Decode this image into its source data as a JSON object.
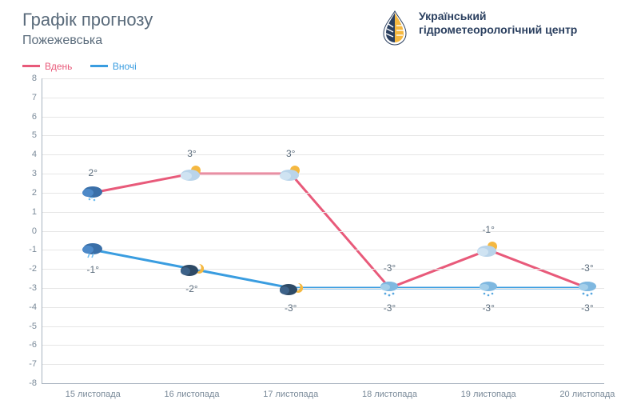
{
  "title": "Графік прогнозу",
  "subtitle": "Пожежевська",
  "org_name": "Український гідрометеорологічний центр",
  "legend": {
    "day": "Вдень",
    "night": "Вночі"
  },
  "chart": {
    "type": "line",
    "y_axis": {
      "min": -8,
      "max": 8,
      "step": 1
    },
    "x_labels": [
      "15 листопада",
      "16 листопада",
      "17 листопада",
      "18 листопада",
      "19 листопада",
      "20 листопада"
    ],
    "series": [
      {
        "key": "day",
        "color": "#e85a7a",
        "values": [
          2,
          3,
          3,
          -3,
          -1,
          -3
        ],
        "icons": [
          "snow_cloud",
          "sun_cloud",
          "sun_cloud",
          "snow",
          "sun_cloud",
          "snow"
        ]
      },
      {
        "key": "night",
        "color": "#3a9de0",
        "values": [
          -1,
          -2,
          -3,
          -3,
          -3,
          -3
        ],
        "icons": [
          "rain_cloud",
          "moon_cloud",
          "moon_cloud",
          "snow",
          "snow",
          "snow"
        ]
      }
    ],
    "line_width": 3,
    "grid_color": "#e6e6e6",
    "axis_color": "#a9b4c0",
    "text_color": "#5a6b7b",
    "tick_color": "#7a8a99",
    "background": "#ffffff",
    "label_offset_day": -32,
    "label_offset_night": 18
  }
}
